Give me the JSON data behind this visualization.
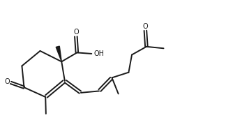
{
  "bg_color": "#ffffff",
  "line_color": "#1a1a1a",
  "line_width": 1.4,
  "text_color": "#1a1a1a",
  "font_size_label": 7.0,
  "figsize": [
    3.24,
    1.92
  ],
  "dpi": 100,
  "xlim": [
    0.0,
    10.5
  ],
  "ylim": [
    1.2,
    6.5
  ]
}
